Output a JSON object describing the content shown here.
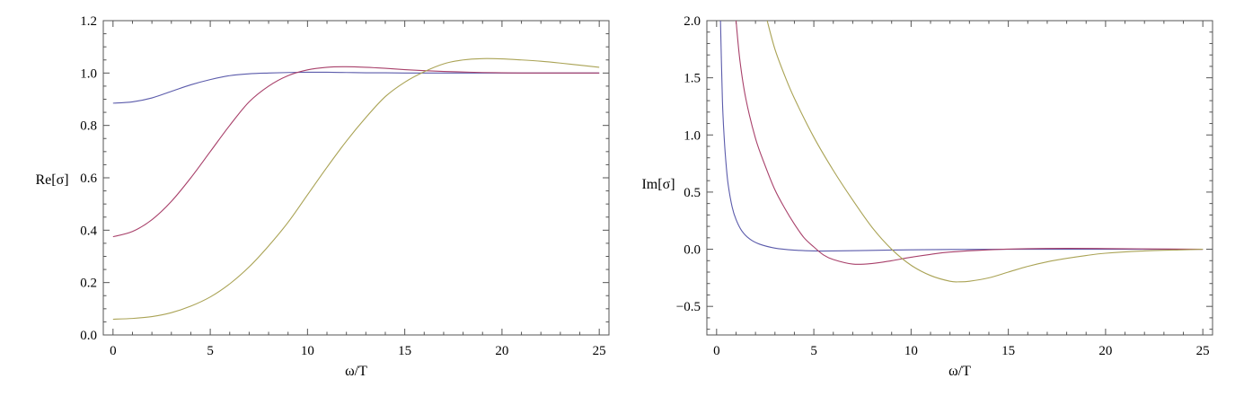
{
  "chart_data": [
    {
      "type": "line",
      "title": "",
      "xlabel": "ω/T",
      "ylabel": "Re[σ]",
      "xlim": [
        -0.5,
        25.5
      ],
      "ylim": [
        0,
        1.2
      ],
      "x_ticks": [
        0,
        5,
        10,
        15,
        20,
        25
      ],
      "x_tick_labels": [
        "0",
        "5",
        "10",
        "15",
        "20",
        "25"
      ],
      "y_ticks": [
        0,
        0.2,
        0.4,
        0.6,
        0.8,
        1.0,
        1.2
      ],
      "y_tick_labels": [
        "0.0",
        "0.2",
        "0.4",
        "0.6",
        "0.8",
        "1.0",
        "1.2"
      ],
      "grid": false,
      "legend": "none",
      "x": [
        0,
        1,
        2,
        3,
        4,
        5,
        6,
        7,
        8,
        9,
        10,
        11,
        12,
        13,
        14,
        15,
        16,
        17,
        18,
        19,
        20,
        21,
        22,
        23,
        24,
        25
      ],
      "series": [
        {
          "color": "#5b5bab",
          "values": [
            0.885,
            0.89,
            0.905,
            0.93,
            0.955,
            0.975,
            0.99,
            0.997,
            1.0,
            1.002,
            1.003,
            1.003,
            1.002,
            1.001,
            1.001,
            1.0,
            1.0,
            1.0,
            1.0,
            1.0,
            1.0,
            1.0,
            1.0,
            1.0,
            1.0,
            1.0
          ]
        },
        {
          "color": "#a8406a",
          "values": [
            0.375,
            0.395,
            0.44,
            0.51,
            0.6,
            0.7,
            0.8,
            0.89,
            0.95,
            0.99,
            1.012,
            1.022,
            1.024,
            1.022,
            1.018,
            1.013,
            1.009,
            1.006,
            1.004,
            1.002,
            1.001,
            1.0,
            1.0,
            1.0,
            1.0,
            1.0
          ]
        },
        {
          "color": "#aaa355",
          "values": [
            0.06,
            0.063,
            0.07,
            0.085,
            0.11,
            0.145,
            0.195,
            0.26,
            0.34,
            0.43,
            0.535,
            0.64,
            0.74,
            0.83,
            0.91,
            0.965,
            1.005,
            1.035,
            1.05,
            1.055,
            1.054,
            1.05,
            1.045,
            1.038,
            1.03,
            1.022
          ]
        }
      ]
    },
    {
      "type": "line",
      "title": "",
      "xlabel": "ω/T",
      "ylabel": "Im[σ]",
      "xlim": [
        -0.5,
        25.5
      ],
      "ylim": [
        -0.75,
        2.0
      ],
      "x_ticks": [
        0,
        5,
        10,
        15,
        20,
        25
      ],
      "x_tick_labels": [
        "0",
        "5",
        "10",
        "15",
        "20",
        "25"
      ],
      "y_ticks": [
        -0.5,
        0.0,
        0.5,
        1.0,
        1.5,
        2.0
      ],
      "y_tick_labels": [
        "−0.5",
        "0.0",
        "0.5",
        "1.0",
        "1.5",
        "2.0"
      ],
      "grid": false,
      "legend": "none",
      "series": [
        {
          "color": "#5b5bab",
          "x": [
            0.2,
            0.3,
            0.4,
            0.5,
            0.6,
            0.8,
            1.0,
            1.3,
            1.7,
            2.2,
            3,
            4,
            5,
            6,
            8,
            10,
            12,
            15,
            20,
            25
          ],
          "values": [
            2.0,
            1.3,
            0.95,
            0.72,
            0.56,
            0.37,
            0.26,
            0.16,
            0.09,
            0.045,
            0.01,
            -0.008,
            -0.015,
            -0.015,
            -0.01,
            -0.005,
            -0.002,
            0.0,
            0.0,
            0.0
          ]
        },
        {
          "color": "#a8406a",
          "x": [
            1.0,
            1.2,
            1.5,
            2.0,
            2.5,
            3,
            3.5,
            4,
            4.5,
            5,
            5.5,
            6,
            7,
            8,
            9,
            10,
            11,
            12,
            14,
            16,
            18,
            20,
            22,
            25
          ],
          "values": [
            2.0,
            1.65,
            1.32,
            0.97,
            0.73,
            0.52,
            0.36,
            0.22,
            0.1,
            0.02,
            -0.05,
            -0.09,
            -0.13,
            -0.125,
            -0.1,
            -0.07,
            -0.045,
            -0.025,
            -0.005,
            0.005,
            0.008,
            0.006,
            0.003,
            0.0
          ]
        },
        {
          "color": "#aaa355",
          "x": [
            2.6,
            3,
            3.5,
            4,
            5,
            6,
            7,
            8,
            9,
            10,
            11,
            12,
            12.5,
            13,
            14,
            15,
            16,
            17,
            18,
            19,
            20,
            22,
            24,
            25
          ],
          "values": [
            2.0,
            1.75,
            1.52,
            1.32,
            0.98,
            0.69,
            0.43,
            0.19,
            0.0,
            -0.14,
            -0.23,
            -0.28,
            -0.285,
            -0.28,
            -0.25,
            -0.2,
            -0.15,
            -0.11,
            -0.08,
            -0.055,
            -0.035,
            -0.015,
            -0.005,
            0.0
          ]
        }
      ]
    }
  ]
}
